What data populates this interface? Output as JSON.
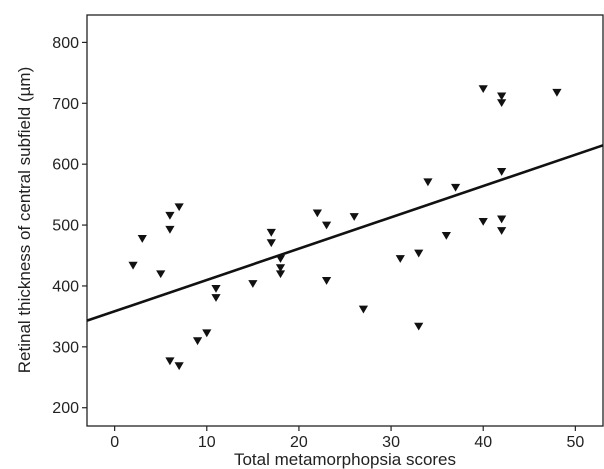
{
  "chart_data": {
    "type": "scatter",
    "title": "",
    "xlabel": "Total metamorphopsia scores",
    "ylabel": "Retinal thickness of central subfield (µm)",
    "xlim": [
      -3,
      53
    ],
    "ylim": [
      170,
      845
    ],
    "xticks": [
      0,
      10,
      20,
      30,
      40,
      50
    ],
    "yticks": [
      200,
      300,
      400,
      500,
      600,
      700,
      800
    ],
    "grid": false,
    "legend": "none",
    "marker": "triangle-down",
    "colors": {
      "marker": "#111111",
      "line": "#111111",
      "axis": "#222222"
    },
    "points": [
      {
        "x": 2,
        "y": 434
      },
      {
        "x": 3,
        "y": 478
      },
      {
        "x": 5,
        "y": 420
      },
      {
        "x": 6,
        "y": 516
      },
      {
        "x": 6,
        "y": 493
      },
      {
        "x": 6,
        "y": 277
      },
      {
        "x": 7,
        "y": 530
      },
      {
        "x": 7,
        "y": 269
      },
      {
        "x": 9,
        "y": 310
      },
      {
        "x": 10,
        "y": 323
      },
      {
        "x": 11,
        "y": 396
      },
      {
        "x": 11,
        "y": 381
      },
      {
        "x": 15,
        "y": 404
      },
      {
        "x": 17,
        "y": 488
      },
      {
        "x": 17,
        "y": 471
      },
      {
        "x": 18,
        "y": 445
      },
      {
        "x": 18,
        "y": 430
      },
      {
        "x": 18,
        "y": 420
      },
      {
        "x": 22,
        "y": 520
      },
      {
        "x": 23,
        "y": 500
      },
      {
        "x": 23,
        "y": 409
      },
      {
        "x": 26,
        "y": 514
      },
      {
        "x": 27,
        "y": 362
      },
      {
        "x": 31,
        "y": 445
      },
      {
        "x": 33,
        "y": 454
      },
      {
        "x": 33,
        "y": 334
      },
      {
        "x": 34,
        "y": 571
      },
      {
        "x": 36,
        "y": 483
      },
      {
        "x": 37,
        "y": 562
      },
      {
        "x": 40,
        "y": 724
      },
      {
        "x": 40,
        "y": 506
      },
      {
        "x": 42,
        "y": 712
      },
      {
        "x": 42,
        "y": 701
      },
      {
        "x": 42,
        "y": 588
      },
      {
        "x": 42,
        "y": 510
      },
      {
        "x": 42,
        "y": 491
      },
      {
        "x": 48,
        "y": 718
      }
    ],
    "fit_line": {
      "x": [
        -3,
        53
      ],
      "y": [
        343,
        631
      ]
    }
  }
}
